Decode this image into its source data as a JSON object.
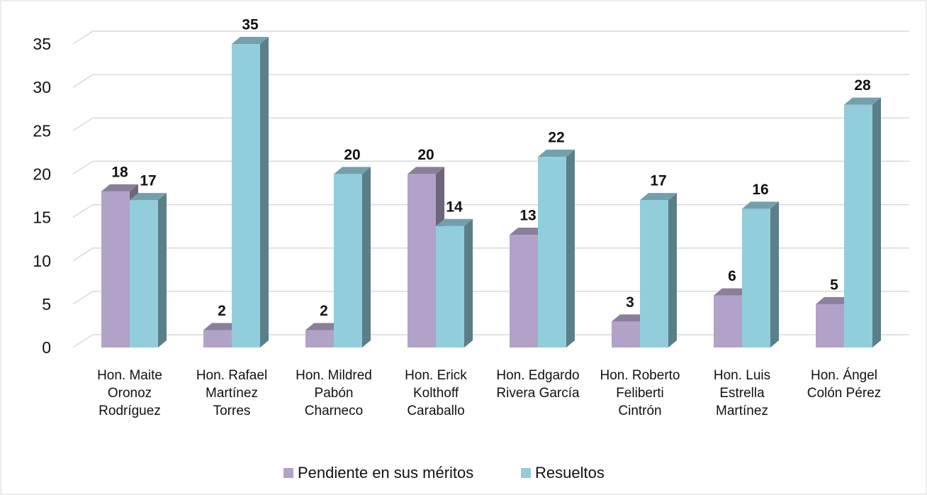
{
  "chart_data": {
    "type": "bar3d",
    "categories": [
      "Hon. Maite Oronoz Rodríguez",
      "Hon. Rafael Martínez Torres",
      "Hon. Mildred Pabón Charneco",
      "Hon. Erick Kolthoff Caraballo",
      "Hon. Edgardo Rivera García",
      "Hon. Roberto Feliberti Cintrón",
      "Hon. Luis Estrella Martínez",
      "Hon. Ángel Colón Pérez"
    ],
    "series": [
      {
        "name": "Pendiente en sus méritos",
        "color": "#b2a2c7",
        "values": [
          18,
          2,
          2,
          20,
          13,
          3,
          6,
          5
        ]
      },
      {
        "name": "Resueltos",
        "color": "#92cddc",
        "values": [
          17,
          35,
          20,
          14,
          22,
          17,
          16,
          28
        ]
      }
    ],
    "ylim": [
      0,
      35
    ],
    "yticks": [
      0,
      5,
      10,
      15,
      20,
      25,
      30,
      35
    ],
    "grid": true,
    "legend": "bottom"
  }
}
